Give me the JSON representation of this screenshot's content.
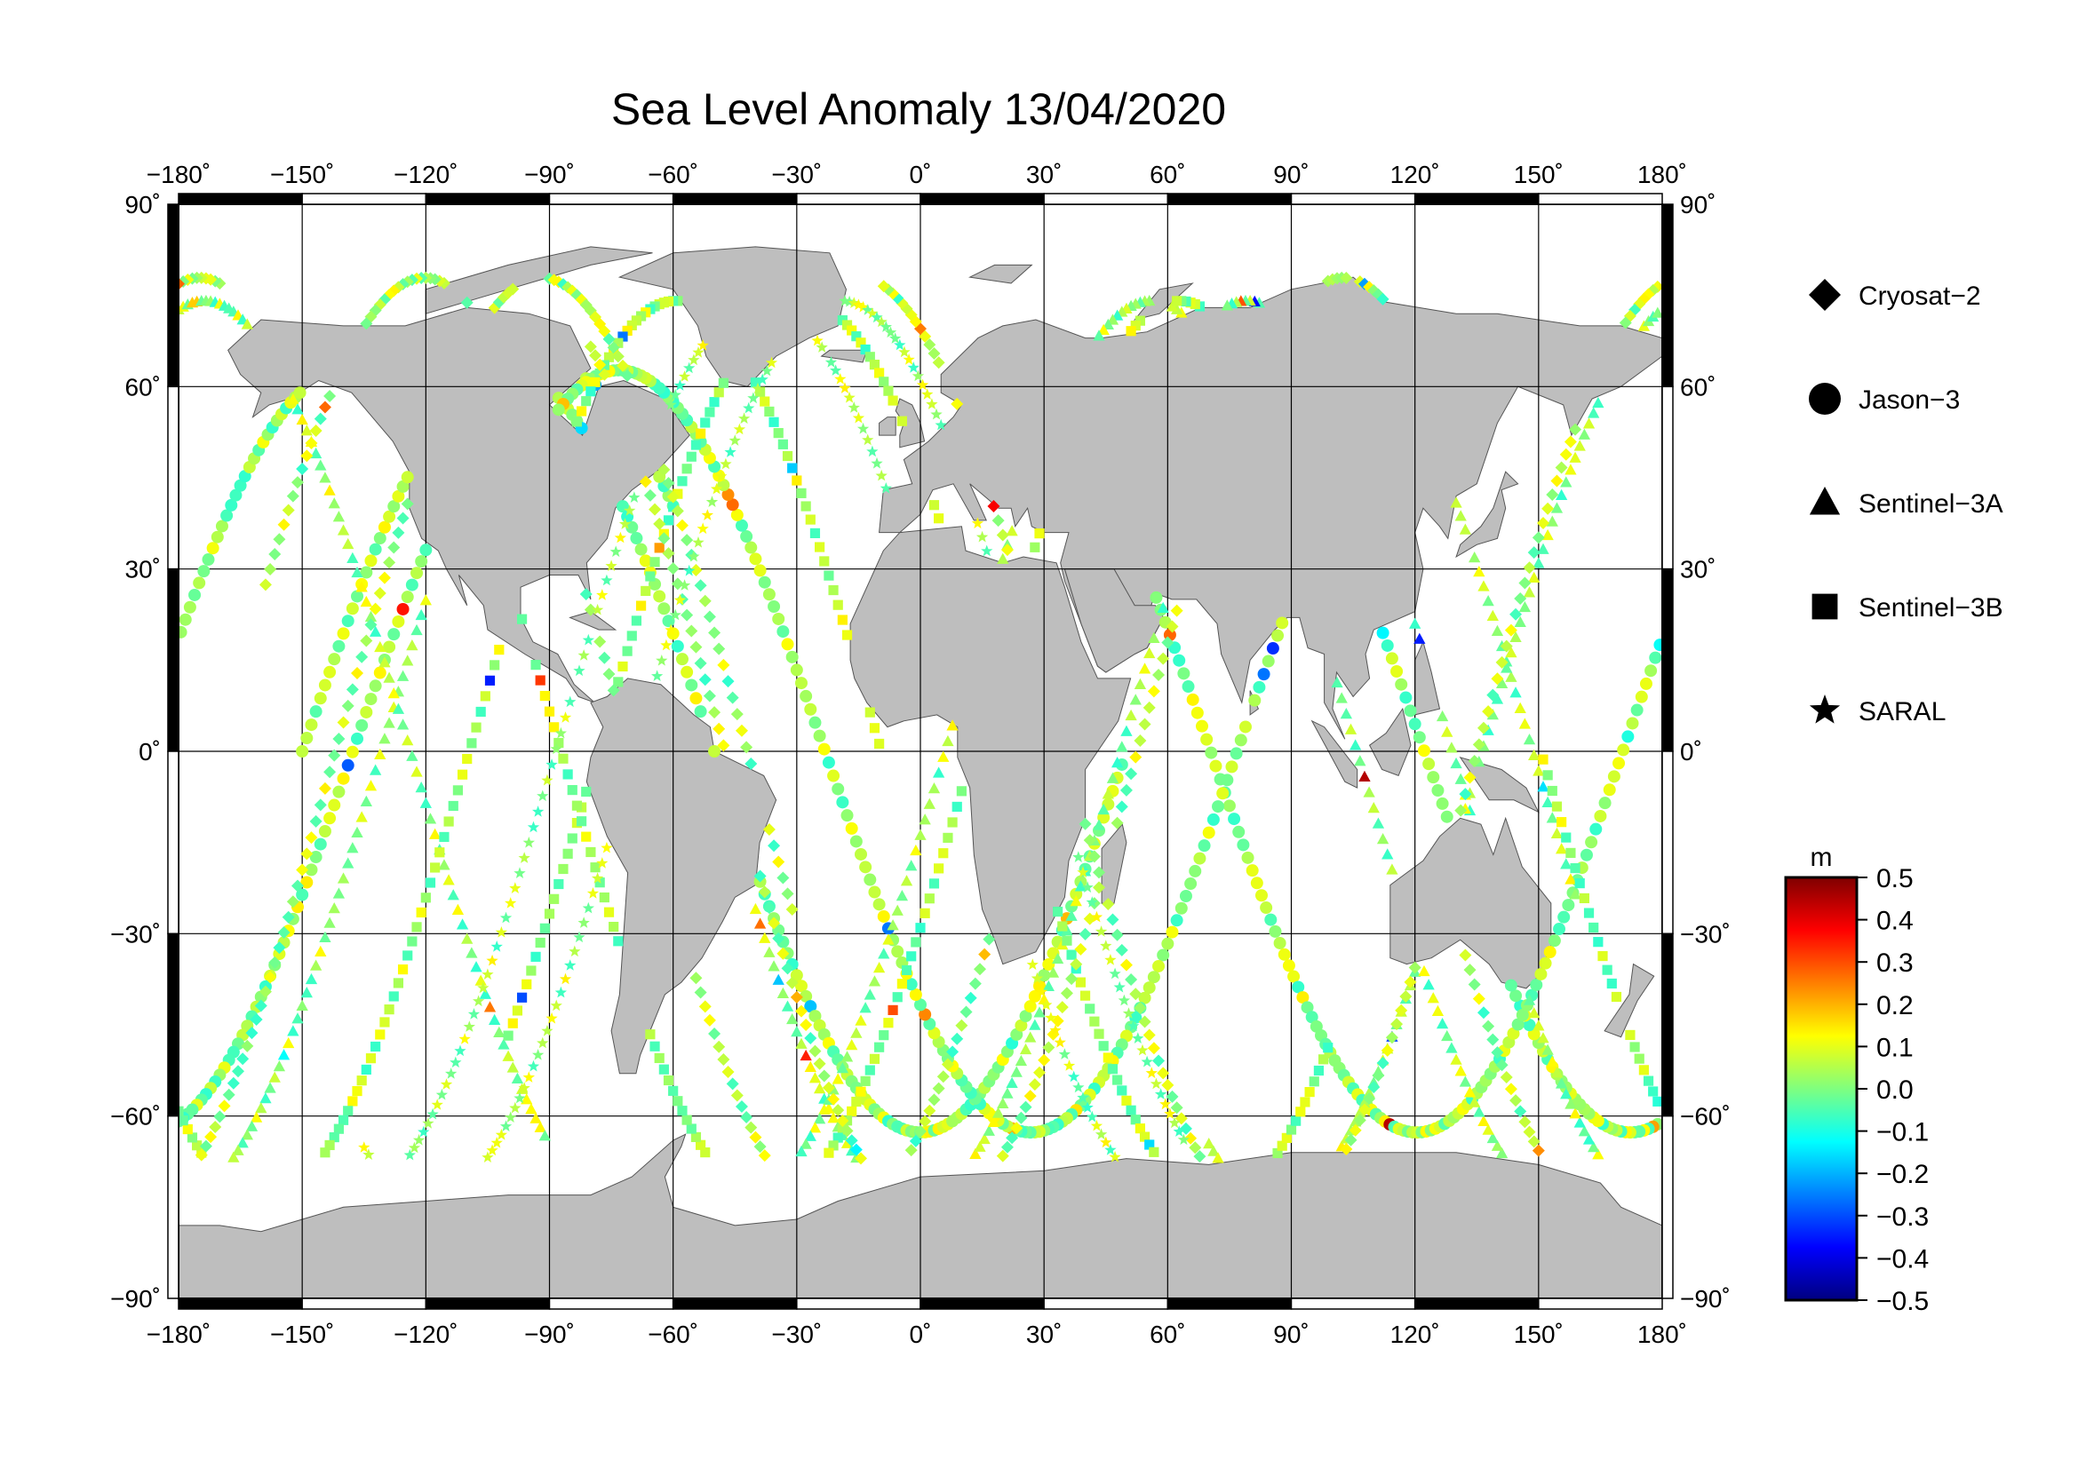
{
  "title": "Sea Level Anomaly 13/04/2020",
  "map": {
    "projection": "equirectangular",
    "lon_range": [
      -180,
      180
    ],
    "lat_range": [
      -90,
      90
    ],
    "grid_step_lon": 30,
    "grid_step_lat": 30,
    "land_color": "#bebebe",
    "ocean_color": "#ffffff",
    "lon_ticks": [
      "−180˚",
      "−150˚",
      "−120˚",
      "−90˚",
      "−60˚",
      "−30˚",
      "0˚",
      "30˚",
      "60˚",
      "90˚",
      "120˚",
      "150˚",
      "180˚"
    ],
    "lat_ticks": [
      "90˚",
      "60˚",
      "30˚",
      "0˚",
      "−30˚",
      "−60˚",
      "−90˚"
    ]
  },
  "legend": {
    "items": [
      {
        "label": "Cryosat−2",
        "marker": "diamond"
      },
      {
        "label": "Jason−3",
        "marker": "circle"
      },
      {
        "label": "Sentinel−3A",
        "marker": "triangle"
      },
      {
        "label": "Sentinel−3B",
        "marker": "square"
      },
      {
        "label": "SARAL",
        "marker": "star"
      }
    ]
  },
  "colorbar": {
    "unit": "m",
    "min": -0.5,
    "max": 0.5,
    "ticks": [
      "0.5",
      "0.4",
      "0.3",
      "0.2",
      "0.1",
      "0.0",
      "−0.1",
      "−0.2",
      "−0.3",
      "−0.4",
      "−0.5"
    ],
    "colormap": [
      "#00007f",
      "#0000ff",
      "#007fff",
      "#00ffff",
      "#7fff7f",
      "#ffff00",
      "#ff7f00",
      "#ff0000",
      "#7f0000"
    ]
  },
  "tracks": [
    {
      "satellite": "Jason-3",
      "marker": "circle",
      "lon0": -150,
      "phase": 0,
      "dir": 1
    },
    {
      "satellite": "Jason-3",
      "marker": "circle",
      "lon0": -60,
      "phase": 0,
      "dir": -1
    },
    {
      "satellite": "Jason-3",
      "marker": "circle",
      "lon0": 15,
      "phase": 0,
      "dir": 1
    },
    {
      "satellite": "Jason-3",
      "marker": "circle",
      "lon0": 110,
      "phase": 0,
      "dir": -1
    },
    {
      "satellite": "Sentinel-3A",
      "marker": "triangle",
      "lon0": -120,
      "phase": 0,
      "dir": -1
    },
    {
      "satellite": "Sentinel-3A",
      "marker": "triangle",
      "lon0": -40,
      "phase": 0,
      "dir": 1
    },
    {
      "satellite": "Sentinel-3A",
      "marker": "triangle",
      "lon0": 70,
      "phase": 0,
      "dir": 1
    },
    {
      "satellite": "Sentinel-3A",
      "marker": "triangle",
      "lon0": 150,
      "phase": 0,
      "dir": -1
    },
    {
      "satellite": "Sentinel-3B",
      "marker": "square",
      "lon0": -100,
      "phase": 0,
      "dir": 1
    },
    {
      "satellite": "Sentinel-3B",
      "marker": "square",
      "lon0": -10,
      "phase": 0,
      "dir": -1
    },
    {
      "satellite": "Sentinel-3B",
      "marker": "square",
      "lon0": 90,
      "phase": 0,
      "dir": -1
    },
    {
      "satellite": "Cryosat-2",
      "marker": "diamond",
      "lon0": -170,
      "phase": 0,
      "dir": -1
    },
    {
      "satellite": "Cryosat-2",
      "marker": "diamond",
      "lon0": -80,
      "phase": 0,
      "dir": 1
    },
    {
      "satellite": "Cryosat-2",
      "marker": "diamond",
      "lon0": 40,
      "phase": 0,
      "dir": -1
    },
    {
      "satellite": "Cryosat-2",
      "marker": "diamond",
      "lon0": 130,
      "phase": 0,
      "dir": 1
    },
    {
      "satellite": "SARAL",
      "marker": "star",
      "lon0": -135,
      "phase": 0,
      "dir": 1
    },
    {
      "satellite": "SARAL",
      "marker": "star",
      "lon0": 55,
      "phase": 0,
      "dir": -1
    }
  ]
}
